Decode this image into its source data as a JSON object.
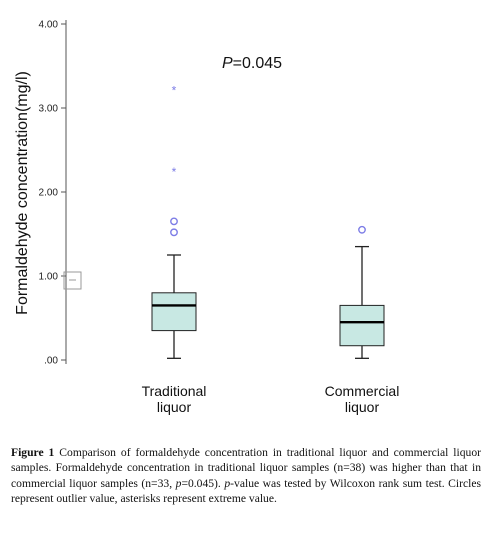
{
  "chart_data": {
    "type": "boxplot",
    "ylabel": "Formaldehyde concentration(mg/l)",
    "ylim": [
      0,
      4
    ],
    "yticks": [
      0,
      1,
      2,
      3,
      4
    ],
    "ytick_labels": [
      ".00",
      "1.00",
      "2.00",
      "3.00",
      "4.00"
    ],
    "annotation": "P=0.045",
    "annotation_italic": "P",
    "annotation_rest": "=0.045",
    "categories": [
      "Traditional liquor",
      "Commercial liquor"
    ],
    "category_label_lines": [
      [
        "Traditional",
        "liquor"
      ],
      [
        "Commercial",
        "liquor"
      ]
    ],
    "boxes": [
      {
        "category": "Traditional liquor",
        "whisker_low": 0.02,
        "q1": 0.35,
        "median": 0.65,
        "q3": 0.8,
        "whisker_high": 1.25,
        "outliers": [
          1.52,
          1.65
        ],
        "extremes": [
          2.25,
          3.22
        ]
      },
      {
        "category": "Commercial liquor",
        "whisker_low": 0.02,
        "q1": 0.17,
        "median": 0.45,
        "q3": 0.65,
        "whisker_high": 1.35,
        "outliers": [
          1.55
        ],
        "extremes": []
      }
    ],
    "colors": {
      "box_fill": "#c8e8e3",
      "outlier": "#7c7ce6",
      "axis": "#555555"
    },
    "grid": false,
    "legend": "none"
  },
  "caption": {
    "label": "Figure 1",
    "part1": " Comparison of formaldehyde concentration in traditional liquor and commercial liquor samples. Formaldehyde concentration in traditional liquor samples (n=38) was higher than that in commercial liquor samples (n=33, ",
    "p_italic": "p",
    "part2": "=0.045). ",
    "p2_italic": "p",
    "part3": "-value was tested by Wilcoxon rank sum test. Circles represent outlier value, asterisks represent extreme value."
  }
}
